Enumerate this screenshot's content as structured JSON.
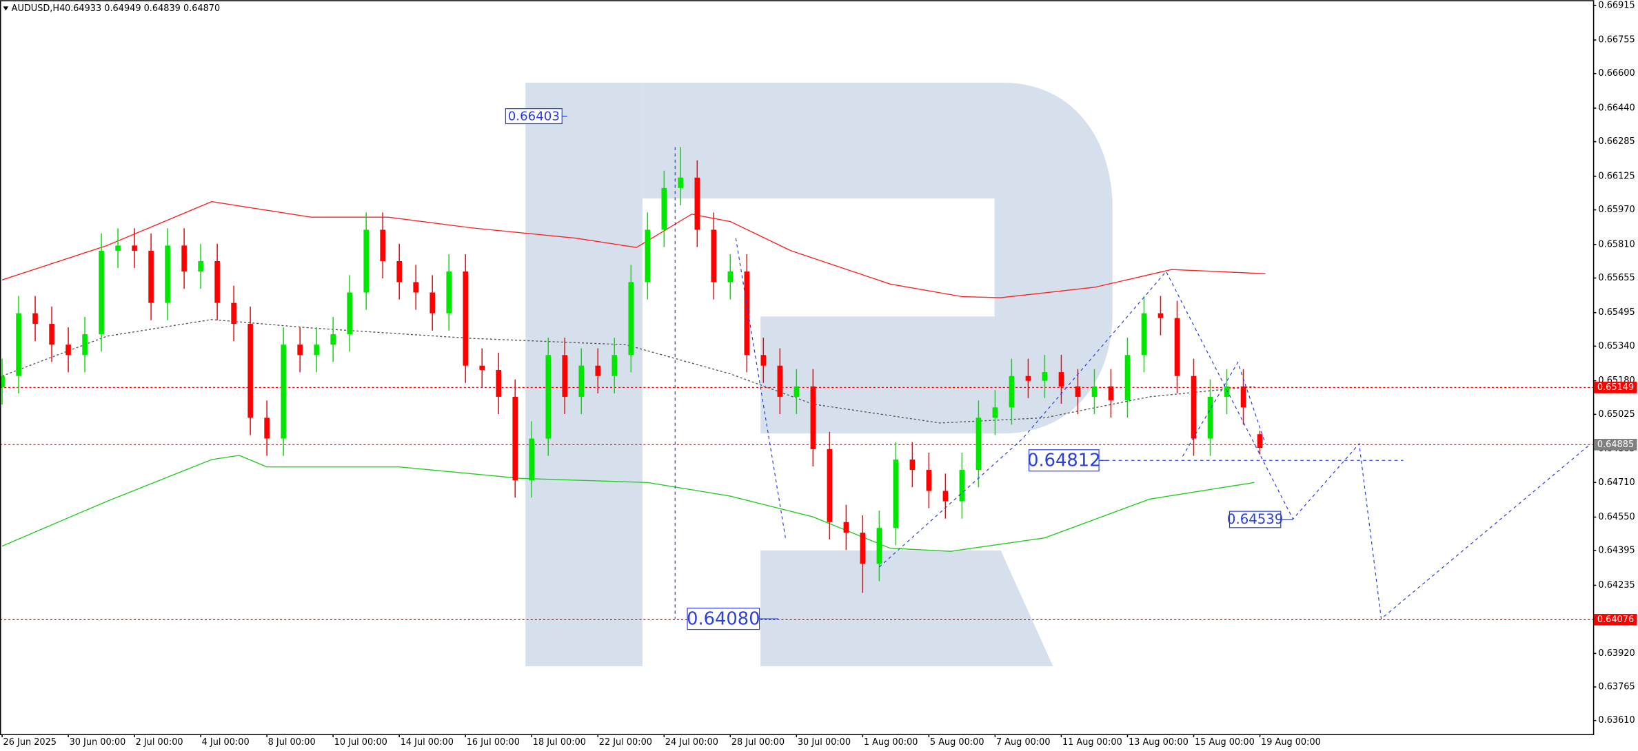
{
  "header": {
    "symbol": "AUDUSD,H4",
    "ohlc": "0.64933 0.64949 0.64839 0.64870"
  },
  "chart_data": {
    "type": "candlestick",
    "x": [
      0,
      3,
      6,
      9,
      12,
      15,
      18,
      21,
      24,
      27,
      30,
      33,
      36,
      39,
      42,
      45,
      48,
      51,
      54,
      57,
      60,
      63,
      66,
      69,
      72,
      75,
      78,
      81,
      84,
      87,
      90,
      93,
      96,
      99,
      102,
      105,
      108,
      111,
      114,
      117,
      120,
      123,
      126,
      129,
      132,
      135,
      138,
      141,
      144,
      147,
      150,
      153,
      156,
      159,
      162,
      165,
      168,
      171,
      174,
      177,
      180,
      183,
      186,
      189,
      192,
      195,
      198,
      201,
      204,
      207,
      210,
      213,
      216,
      219,
      222,
      225,
      228
    ],
    "open": [
      0.6515,
      0.65202,
      0.65492,
      0.65443,
      0.65347,
      0.65299,
      0.65395,
      0.65781,
      0.65805,
      0.65781,
      0.6554,
      0.65805,
      0.65685,
      0.65733,
      0.6554,
      0.65443,
      0.65009,
      0.64913,
      0.65347,
      0.65299,
      0.65347,
      0.65395,
      0.65588,
      0.65878,
      0.65733,
      0.65636,
      0.65588,
      0.65492,
      0.65685,
      0.6525,
      0.6523,
      0.65106,
      0.6472,
      0.64913,
      0.65299,
      0.65106,
      0.6525,
      0.65202,
      0.65299,
      0.65636,
      0.65878,
      0.66071,
      0.66119,
      0.65878,
      0.65636,
      0.65685,
      0.65299,
      0.6525,
      0.65106,
      0.65154,
      0.64864,
      0.64527,
      0.64478,
      0.64334,
      0.645,
      0.64816,
      0.64768,
      0.64671,
      0.64623,
      0.64768,
      0.65009,
      0.65057,
      0.65202,
      0.6518,
      0.6522,
      0.65154,
      0.65106,
      0.65154,
      0.6509,
      0.65299,
      0.65492,
      0.6547,
      0.65202,
      0.64913,
      0.65106,
      0.65154,
      0.64933
    ],
    "high": [
      0.65282,
      0.65572,
      0.65572,
      0.65523,
      0.65427,
      0.65475,
      0.65861,
      0.65885,
      0.65885,
      0.65861,
      0.65885,
      0.65885,
      0.65813,
      0.65813,
      0.6562,
      0.65523,
      0.65089,
      0.65427,
      0.65427,
      0.65427,
      0.65475,
      0.65668,
      0.65958,
      0.65958,
      0.65813,
      0.65716,
      0.65668,
      0.65765,
      0.65765,
      0.6533,
      0.6531,
      0.65186,
      0.64993,
      0.65379,
      0.65379,
      0.6533,
      0.6533,
      0.65379,
      0.65716,
      0.65958,
      0.66151,
      0.6626,
      0.66199,
      0.65958,
      0.65765,
      0.65765,
      0.65379,
      0.6533,
      0.65234,
      0.65234,
      0.64944,
      0.64607,
      0.64558,
      0.6458,
      0.64896,
      0.64896,
      0.64848,
      0.64751,
      0.64848,
      0.65089,
      0.65137,
      0.65282,
      0.65282,
      0.653,
      0.653,
      0.65234,
      0.65234,
      0.65234,
      0.65379,
      0.65572,
      0.65572,
      0.6555,
      0.65282,
      0.65186,
      0.65234,
      0.65234,
      0.64949
    ],
    "low": [
      0.6507,
      0.65122,
      0.65363,
      0.65267,
      0.65219,
      0.65219,
      0.65315,
      0.65701,
      0.65701,
      0.6546,
      0.6546,
      0.65605,
      0.65605,
      0.6546,
      0.65363,
      0.64929,
      0.64833,
      0.64833,
      0.65219,
      0.65219,
      0.65267,
      0.65315,
      0.65508,
      0.65653,
      0.65556,
      0.65508,
      0.65412,
      0.65412,
      0.6517,
      0.6515,
      0.65026,
      0.6464,
      0.6464,
      0.64833,
      0.65026,
      0.65026,
      0.65122,
      0.65122,
      0.65219,
      0.65556,
      0.65798,
      0.65991,
      0.65798,
      0.65556,
      0.65556,
      0.65219,
      0.6517,
      0.65026,
      0.65026,
      0.64784,
      0.64447,
      0.64398,
      0.642,
      0.64254,
      0.6442,
      0.64688,
      0.64591,
      0.64543,
      0.64543,
      0.64688,
      0.64929,
      0.64977,
      0.651,
      0.651,
      0.65074,
      0.65026,
      0.65026,
      0.6501,
      0.6501,
      0.65219,
      0.6539,
      0.65122,
      0.64833,
      0.64833,
      0.65026,
      0.64977,
      0.64839
    ],
    "close": [
      0.65202,
      0.65492,
      0.65443,
      0.65347,
      0.65299,
      0.65395,
      0.65781,
      0.65805,
      0.65781,
      0.6554,
      0.65805,
      0.65685,
      0.65733,
      0.6554,
      0.65443,
      0.65009,
      0.64913,
      0.65347,
      0.65299,
      0.65347,
      0.65395,
      0.65588,
      0.65878,
      0.65733,
      0.65636,
      0.65588,
      0.65492,
      0.65685,
      0.6525,
      0.6523,
      0.65106,
      0.6472,
      0.64913,
      0.65299,
      0.65106,
      0.6525,
      0.65202,
      0.65299,
      0.65636,
      0.65878,
      0.66071,
      0.66119,
      0.65878,
      0.65636,
      0.65685,
      0.65299,
      0.6525,
      0.65106,
      0.65154,
      0.64864,
      0.64527,
      0.64478,
      0.64334,
      0.645,
      0.64816,
      0.64768,
      0.64671,
      0.64623,
      0.64768,
      0.65009,
      0.65057,
      0.65202,
      0.6518,
      0.6522,
      0.65154,
      0.65106,
      0.65154,
      0.6509,
      0.65299,
      0.65492,
      0.6547,
      0.65202,
      0.64913,
      0.65106,
      0.65154,
      0.65057,
      0.6487
    ],
    "up_color": "#00e600",
    "down_color": "#ff0000",
    "xlim": [
      -0.38,
      288.4
    ],
    "ylim": [
      0.63547,
      0.66939
    ],
    "yticks": [
      0.66915,
      0.66755,
      {
        "value": 0.666,
        "label": "0.66600"
      },
      {
        "value": 0.6644,
        "label": "0.66440"
      },
      0.66285,
      0.66125,
      {
        "value": 0.6597,
        "label": "0.65970"
      },
      {
        "value": 0.6581,
        "label": "0.65810"
      },
      0.65655,
      0.65495,
      {
        "value": 0.6534,
        "label": "0.65340"
      },
      {
        "value": 0.6518,
        "label": "0.65180"
      },
      0.65025,
      0.64865,
      {
        "value": 0.6471,
        "label": "0.64710"
      },
      {
        "value": 0.6455,
        "label": "0.64550"
      },
      0.64395,
      0.64235,
      {
        "value": 0.6408,
        "label": "0.64080"
      },
      {
        "value": 0.6392,
        "label": "0.63920"
      },
      0.63765,
      {
        "value": 0.6361,
        "label": "0.63610"
      }
    ],
    "xticks": [
      {
        "value": 0,
        "label": "26 Jun 2025"
      },
      {
        "value": 12,
        "label": "30 Jun 00:00"
      },
      {
        "value": 24,
        "label": "2 Jul 00:00"
      },
      {
        "value": 36,
        "label": "4 Jul 00:00"
      },
      {
        "value": 48,
        "label": "8 Jul 00:00"
      },
      {
        "value": 60,
        "label": "10 Jul 00:00"
      },
      {
        "value": 72,
        "label": "14 Jul 00:00"
      },
      {
        "value": 84,
        "label": "16 Jul 00:00"
      },
      {
        "value": 96,
        "label": "18 Jul 00:00"
      },
      {
        "value": 108,
        "label": "22 Jul 00:00"
      },
      {
        "value": 120,
        "label": "24 Jul 00:00"
      },
      {
        "value": 132,
        "label": "28 Jul 00:00"
      },
      {
        "value": 144,
        "label": "30 Jul 00:00"
      },
      {
        "value": 156,
        "label": "1 Aug 00:00"
      },
      {
        "value": 168,
        "label": "5 Aug 00:00"
      },
      {
        "value": 180,
        "label": "7 Aug 00:00"
      },
      {
        "value": 192,
        "label": "11 Aug 00:00"
      },
      {
        "value": 204,
        "label": "13 Aug 00:00"
      },
      {
        "value": 216,
        "label": "15 Aug 00:00"
      },
      {
        "value": 228,
        "label": "19 Aug 00:00"
      }
    ],
    "lines": [
      {
        "color": "#ff2020",
        "dash": false,
        "x": [
          0,
          19,
          38,
          56,
          70,
          85,
          104,
          115,
          125,
          132,
          143,
          161,
          174,
          181,
          198,
          212,
          229
        ],
        "values": [
          0.65646,
          0.65805,
          0.66008,
          0.65936,
          0.65936,
          0.65887,
          0.65839,
          0.65796,
          0.6595,
          0.65916,
          0.65781,
          0.65627,
          0.65569,
          0.65564,
          0.65612,
          0.65694,
          0.65675
        ]
      },
      {
        "color": "#22cc22",
        "dash": false,
        "x": [
          0,
          19,
          38,
          43,
          48,
          72,
          94,
          117,
          132,
          147,
          161,
          172,
          189,
          208,
          227
        ],
        "values": [
          0.64416,
          0.64623,
          0.64816,
          0.64835,
          0.64782,
          0.64782,
          0.64729,
          0.6471,
          0.64647,
          0.64551,
          0.64406,
          0.64392,
          0.64454,
          0.64633,
          0.6471
        ]
      },
      {
        "color": "#555555",
        "dash": true,
        "x": [
          0,
          19,
          38,
          56,
          85,
          113,
          132,
          147,
          170,
          189,
          208,
          227
        ],
        "values": [
          0.65202,
          0.65386,
          0.65463,
          0.65424,
          0.65376,
          0.65347,
          0.65212,
          0.65072,
          0.64985,
          0.65009,
          0.65106,
          0.65154
        ]
      }
    ],
    "projections": [
      {
        "x": [
          122,
          122
        ],
        "values": [
          0.6626,
          0.6408
        ]
      },
      {
        "x": [
          133,
          142
        ],
        "values": [
          0.65839,
          0.64454
        ]
      },
      {
        "x": [
          159,
          185,
          211,
          234,
          246,
          250,
          288
        ],
        "values": [
          0.64319,
          0.64913,
          0.65685,
          0.64541,
          0.64889,
          0.6408,
          0.64889
        ]
      },
      {
        "x": [
          214,
          224,
          229
        ],
        "values": [
          0.64831,
          0.65265,
          0.64889
        ]
      },
      {
        "x": [
          199,
          254
        ],
        "values": [
          0.64812,
          0.64812
        ]
      }
    ],
    "projection_color": "#2a3fe0",
    "price_lines": [
      {
        "value": 0.65149,
        "color": "#ff0000"
      },
      {
        "value": 0.64885,
        "color": "#ff0000"
      },
      {
        "value": 0.64076,
        "color": "#ff0000"
      }
    ],
    "price_label_colors": [
      "#ff0000",
      "#808080",
      "#ff0000"
    ],
    "annotations": [
      0.66403,
      {
        "value": 0.6408,
        "label": "0.64080"
      },
      0.64812,
      0.64539
    ]
  }
}
